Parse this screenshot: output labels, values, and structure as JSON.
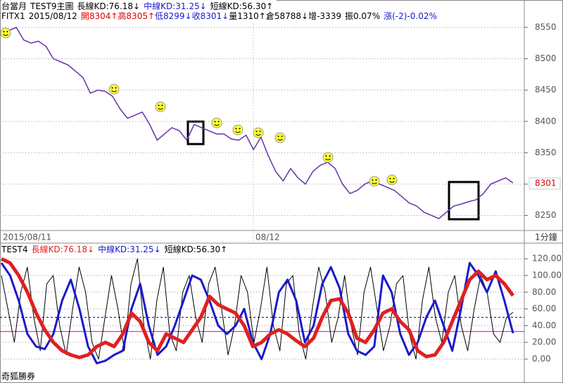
{
  "header": {
    "line1": [
      "台當月",
      "TEST9主圖",
      "長線KD:76.18↓",
      "中線KD:31.25↓",
      "短線KD:56.30↑"
    ],
    "line2": [
      "FITX1",
      "2015/08/12",
      "開8304↑",
      "高8305↑",
      "低8299↓",
      "收8301↓",
      "量1310↑",
      "倉58788↓",
      "增-3339",
      "振0.07%",
      "漲(-2)-0.02%"
    ]
  },
  "x_labels": [
    "2015/08/11",
    "08/12"
  ],
  "interval": "1分鐘",
  "footer": "奇狐勝券",
  "chart_data": [
    {
      "type": "line",
      "color": "#6633aa",
      "current_price": 8301,
      "values": [
        8540,
        8545,
        8550,
        8530,
        8525,
        8528,
        8520,
        8500,
        8495,
        8490,
        8480,
        8470,
        8445,
        8450,
        8448,
        8440,
        8420,
        8405,
        8410,
        8415,
        8395,
        8370,
        8380,
        8390,
        8385,
        8370,
        8395,
        8390,
        8385,
        8380,
        8380,
        8372,
        8370,
        8378,
        8355,
        8375,
        8345,
        8320,
        8305,
        8325,
        8310,
        8300,
        8320,
        8330,
        8335,
        8325,
        8300,
        8285,
        8290,
        8300,
        8305,
        8300,
        8295,
        8290,
        8280,
        8270,
        8265,
        8255,
        8250,
        8245,
        8255,
        8265,
        8268,
        8272,
        8275,
        8285,
        8300,
        8305,
        8310,
        8302
      ],
      "ylim": [
        8226,
        8578
      ],
      "yticks": [
        8250,
        8300,
        8350,
        8400,
        8450,
        8500,
        8550
      ],
      "grid": true
    },
    {
      "type": "line",
      "title": [
        "TEST4",
        "長線KD:76.18↓",
        "中線KD:31.25↓",
        "短線KD:56.30↑"
      ],
      "ylim": [
        -16,
        137
      ],
      "yticks": [
        {
          "value": 0,
          "label": "0.00"
        },
        {
          "value": 20,
          "label": "20.00"
        },
        {
          "value": 40,
          "label": "40.00"
        },
        {
          "value": 60,
          "label": "60.00"
        },
        {
          "value": 80,
          "label": "80.00"
        },
        {
          "value": 100,
          "label": "100.00"
        },
        {
          "value": 120,
          "label": "120.00"
        }
      ],
      "grid": true,
      "hlines": [
        {
          "value": 50,
          "color": "#0000cc",
          "dash": true
        },
        {
          "value": 33,
          "color": "#cc00cc",
          "dash": false
        }
      ],
      "series": [
        {
          "name": "短線KD",
          "color": "#000000",
          "width": 1,
          "values": [
            100,
            60,
            20,
            80,
            110,
            50,
            10,
            90,
            100,
            40,
            5,
            60,
            110,
            80,
            20,
            0,
            50,
            100,
            60,
            10,
            90,
            120,
            40,
            0,
            70,
            110,
            30,
            10,
            80,
            100,
            50,
            20,
            90,
            110,
            60,
            5,
            40,
            100,
            80,
            20,
            60,
            110,
            40,
            10,
            90,
            100,
            30,
            0,
            60,
            110,
            80,
            20,
            50,
            100,
            40,
            5,
            80,
            110,
            60,
            10,
            40,
            90,
            100,
            30,
            0,
            70,
            110,
            50,
            20,
            80,
            100,
            40,
            10,
            60,
            100,
            80,
            30,
            20,
            50,
            56
          ]
        },
        {
          "name": "中線KD",
          "color": "#1a1acc",
          "width": 3,
          "values": [
            115,
            100,
            70,
            30,
            15,
            12,
            30,
            70,
            95,
            60,
            15,
            -5,
            -2,
            5,
            10,
            60,
            90,
            40,
            5,
            15,
            40,
            70,
            100,
            95,
            70,
            40,
            30,
            40,
            60,
            20,
            0,
            30,
            80,
            95,
            70,
            20,
            40,
            90,
            110,
            85,
            30,
            10,
            5,
            15,
            100,
            80,
            30,
            5,
            20,
            50,
            70,
            40,
            10,
            60,
            115,
            100,
            80,
            105,
            70,
            31
          ]
        },
        {
          "name": "長線KD",
          "color": "#e02020",
          "width": 5,
          "values": [
            120,
            115,
            100,
            80,
            55,
            35,
            20,
            10,
            5,
            2,
            5,
            15,
            20,
            15,
            30,
            55,
            45,
            20,
            10,
            30,
            25,
            20,
            35,
            50,
            75,
            65,
            60,
            55,
            40,
            15,
            20,
            30,
            35,
            30,
            22,
            15,
            25,
            50,
            70,
            72,
            55,
            25,
            20,
            35,
            55,
            60,
            45,
            35,
            10,
            3,
            5,
            20,
            45,
            70,
            95,
            105,
            95,
            100,
            90,
            76
          ]
        }
      ]
    }
  ]
}
